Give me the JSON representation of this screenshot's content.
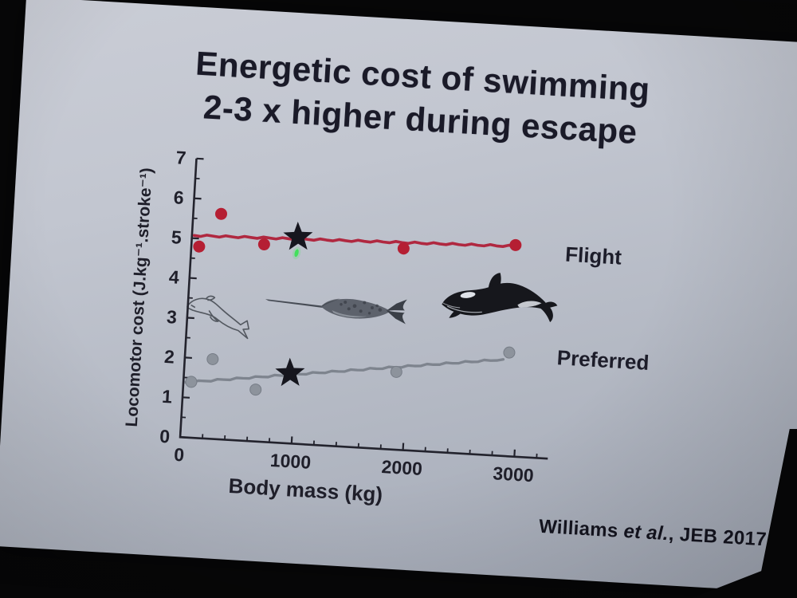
{
  "slide": {
    "title_line1": "Energetic cost of swimming",
    "title_line2": "2-3 x higher during escape",
    "citation": {
      "prefix": "Williams ",
      "etal": "et al.",
      "suffix": ", JEB 2017"
    }
  },
  "chart_data": {
    "type": "scatter",
    "title": "Energetic cost of swimming 2-3 x higher during escape",
    "xlabel": "Body mass (kg)",
    "ylabel": "Locomotor cost (J.kg⁻¹.stroke⁻¹)",
    "xlim": [
      0,
      3300
    ],
    "ylim": [
      0,
      7
    ],
    "x_major_ticks": [
      0,
      1000,
      2000,
      3000
    ],
    "x_minor_step": 200,
    "y_major_ticks": [
      0,
      1,
      2,
      3,
      4,
      5,
      6,
      7
    ],
    "y_minor_step": 0.5,
    "grid": false,
    "legend_position": "right-of-line-ends",
    "axis_color": "#23232d",
    "label_color": "#1f1f2a",
    "star_color": "#16161e",
    "series": [
      {
        "name": "Flight",
        "line_color": "#b02840",
        "marker_color": "#b51f33",
        "points": [
          [
            70,
            4.8
          ],
          [
            250,
            5.65
          ],
          [
            650,
            4.95
          ],
          [
            1900,
            5.05
          ],
          [
            2900,
            5.3
          ]
        ],
        "trend": [
          [
            20,
            5.07
          ],
          [
            2900,
            5.27
          ]
        ],
        "star": [
          950,
          5.18
        ],
        "label_pos": [
          3350,
          5.15
        ]
      },
      {
        "name": "Preferred",
        "line_color": "#7e848e",
        "marker_color": "#8d939c",
        "points": [
          [
            70,
            1.4
          ],
          [
            250,
            2.0
          ],
          [
            650,
            1.3
          ],
          [
            1900,
            1.95
          ],
          [
            2900,
            2.6
          ]
        ],
        "trend": [
          [
            20,
            1.38
          ],
          [
            2850,
            2.42
          ]
        ],
        "star": [
          950,
          1.76
        ],
        "label_pos": [
          3330,
          2.55
        ]
      }
    ],
    "annotations": [
      {
        "name": "dolphin-sketch",
        "x_kg": -35,
        "y_cost": 3.58,
        "w_kg": 630,
        "h_cost": 1.1
      },
      {
        "name": "narwhal-illustration",
        "x_kg": 690,
        "y_cost": 3.82,
        "w_kg": 1290,
        "h_cost": 0.8
      },
      {
        "name": "orca-illustration",
        "x_kg": 2250,
        "y_cost": 4.62,
        "w_kg": 1070,
        "h_cost": 1.55
      },
      {
        "name": "laser-pointer-dot",
        "x_kg": 945,
        "y_cost": 4.78
      }
    ]
  }
}
